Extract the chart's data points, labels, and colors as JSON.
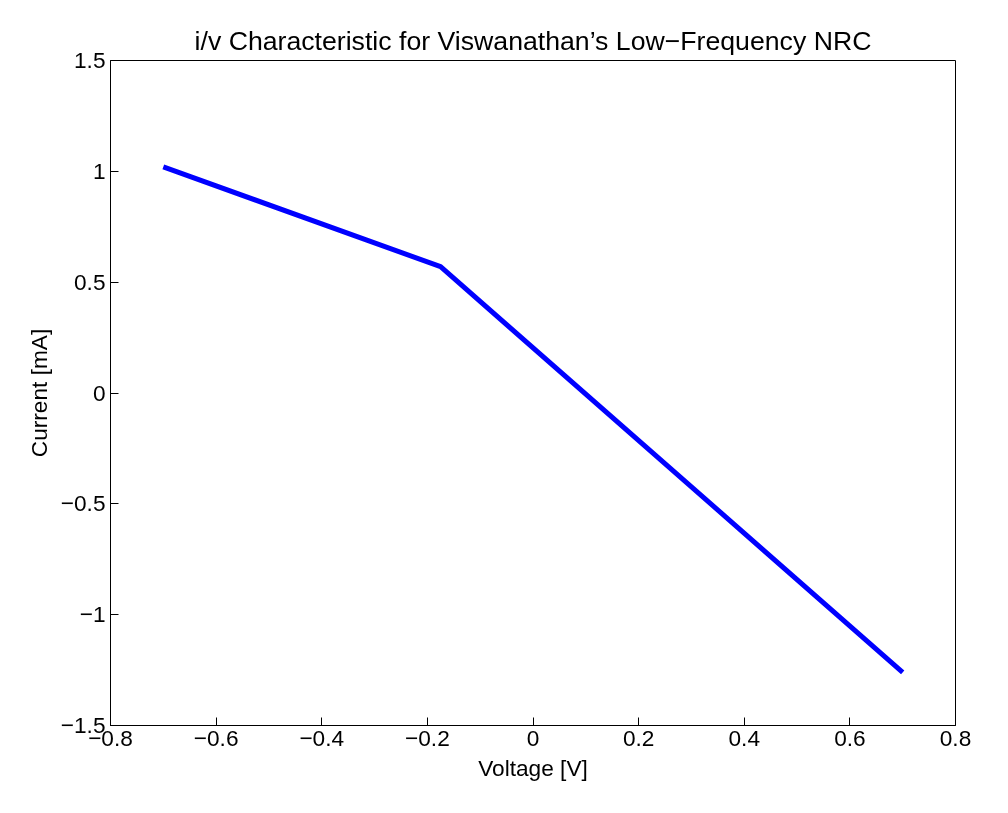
{
  "chart_data": {
    "type": "line",
    "title": "i/v Characteristic for Viswanathan’s Low−Frequency NRC",
    "xlabel": "Voltage [V]",
    "ylabel": "Current [mA]",
    "x": [
      -0.7,
      -0.175,
      0.7
    ],
    "series": [
      {
        "color": "#0000ff",
        "values": [
          1.02,
          0.57,
          -1.26
        ]
      }
    ],
    "xlim": [
      -0.8,
      0.8
    ],
    "ylim": [
      -1.5,
      1.5
    ],
    "xticks": [
      {
        "value": -0.8,
        "label": "−0.8"
      },
      {
        "value": -0.6,
        "label": "−0.6"
      },
      {
        "value": -0.4,
        "label": "−0.4"
      },
      {
        "value": -0.2,
        "label": "−0.2"
      },
      0,
      0.2,
      0.4,
      0.6,
      0.8
    ],
    "yticks": [
      {
        "value": -1.5,
        "label": "−1.5"
      },
      {
        "value": -1,
        "label": "−1"
      },
      {
        "value": -0.5,
        "label": "−0.5"
      },
      0,
      0.5,
      1,
      1.5
    ],
    "grid": false,
    "marker": "none",
    "line_style": "solid"
  }
}
